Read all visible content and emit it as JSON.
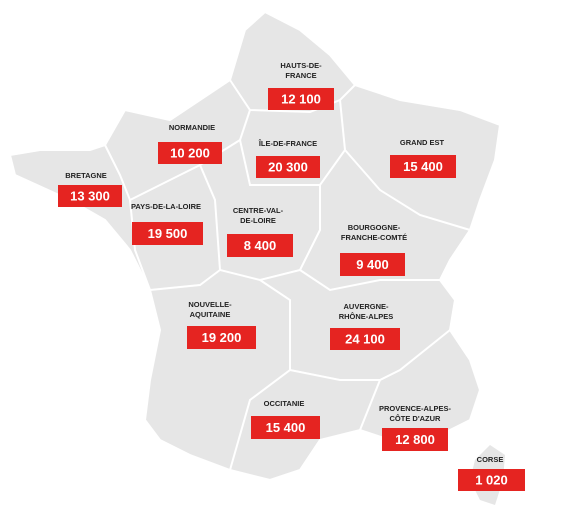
{
  "regions": [
    {
      "name": [
        "HAUTS-DE-",
        "FRANCE"
      ],
      "value": "12 100"
    },
    {
      "name": [
        "NORMANDIE"
      ],
      "value": "10 200"
    },
    {
      "name": [
        "ÎLE-DE-FRANCE"
      ],
      "value": "20 300"
    },
    {
      "name": [
        "GRAND EST"
      ],
      "value": "15 400"
    },
    {
      "name": [
        "BRETAGNE"
      ],
      "value": "13 300"
    },
    {
      "name": [
        "PAYS-DE-LA-LOIRE"
      ],
      "value": "19 500"
    },
    {
      "name": [
        "CENTRE-VAL-",
        "DE-LOIRE"
      ],
      "value": "8 400"
    },
    {
      "name": [
        "BOURGOGNE-",
        "FRANCHE-COMTÉ"
      ],
      "value": "9 400"
    },
    {
      "name": [
        "NOUVELLE-",
        "AQUITAINE"
      ],
      "value": "19 200"
    },
    {
      "name": [
        "AUVERGNE-",
        "RHÔNE-ALPES"
      ],
      "value": "24 100"
    },
    {
      "name": [
        "OCCITANIE"
      ],
      "value": "15 400"
    },
    {
      "name": [
        "PROVENCE-ALPES-",
        "CÔTE D'AZUR"
      ],
      "value": "12 800"
    },
    {
      "name": [
        "CORSE"
      ],
      "value": "1 020"
    }
  ]
}
